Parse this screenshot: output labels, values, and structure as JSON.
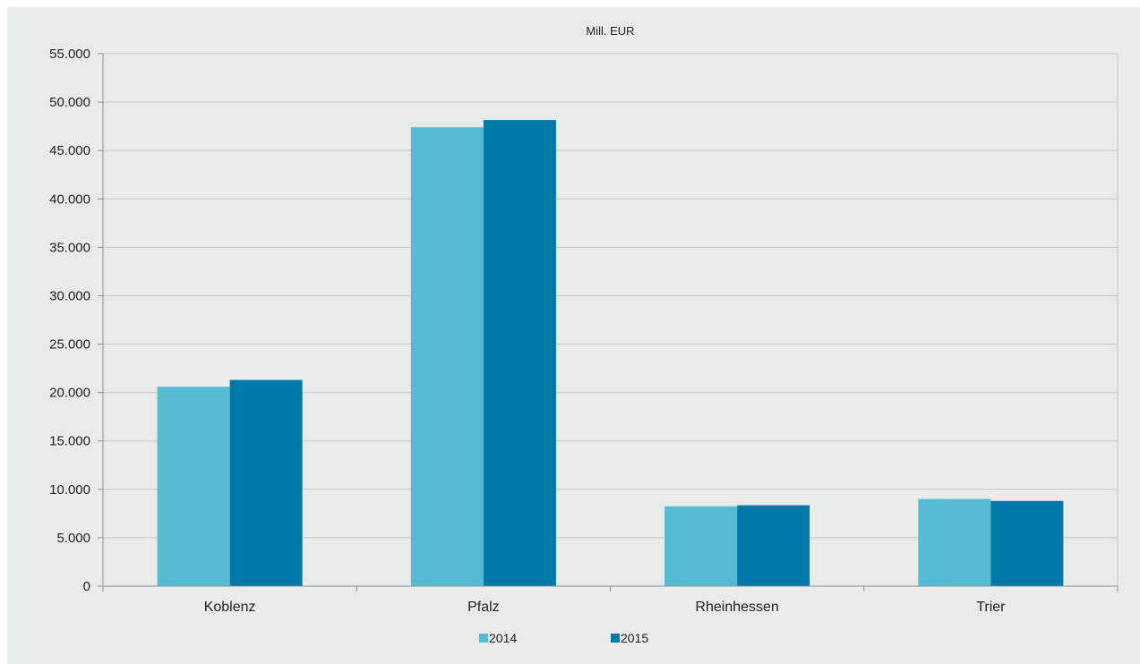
{
  "chart_data": {
    "type": "bar",
    "title": "Mill. EUR",
    "xlabel": "",
    "ylabel": "",
    "categories": [
      "Koblenz",
      "Pfalz",
      "Rheinhessen",
      "Trier"
    ],
    "series": [
      {
        "name": "2014",
        "values": [
          20600,
          47400,
          8250,
          9000
        ],
        "color": "#55bbd2"
      },
      {
        "name": "2015",
        "values": [
          21300,
          48150,
          8350,
          8800
        ],
        "color": "#0079a9"
      }
    ],
    "ylim": [
      0,
      55000
    ],
    "yticks": [
      0,
      5000,
      10000,
      15000,
      20000,
      25000,
      30000,
      35000,
      40000,
      45000,
      50000,
      55000
    ],
    "ytick_labels": [
      "0",
      "5.000",
      "10.000",
      "15.000",
      "20.000",
      "25.000",
      "30.000",
      "35.000",
      "40.000",
      "45.000",
      "50.000",
      "55.000"
    ],
    "grid": true,
    "legend_position": "bottom",
    "background_color": "#e7ebea",
    "grid_color": "#c4c9c8"
  }
}
